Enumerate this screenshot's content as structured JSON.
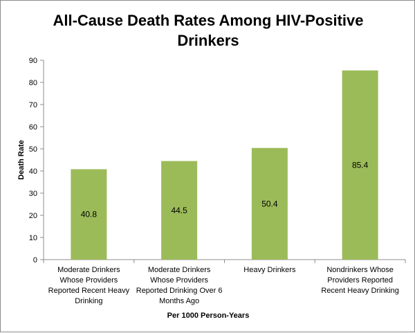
{
  "chart_data": {
    "type": "bar",
    "title_lines": [
      "All-Cause Death Rates Among HIV-Positive",
      "Drinkers"
    ],
    "xlabel": "Per 1000 Person-Years",
    "ylabel": "Death Rate",
    "ylim": [
      0,
      90
    ],
    "ytick_step": 10,
    "grid": false,
    "bar_color": "#9bbb59",
    "categories": [
      [
        "Moderate Drinkers",
        "Whose Providers",
        "Reported Recent Heavy",
        "Drinking"
      ],
      [
        "Moderate Drinkers",
        "Whose Providers",
        "Reported Drinking Over 6",
        "Months Ago"
      ],
      [
        "Heavy Drinkers"
      ],
      [
        "Nondrinkers Whose",
        "Providers Reported",
        "Recent Heavy Drinking"
      ]
    ],
    "values": [
      40.8,
      44.5,
      50.4,
      85.4
    ],
    "data_labels": [
      "40.8",
      "44.5",
      "50.4",
      "85.4"
    ]
  }
}
